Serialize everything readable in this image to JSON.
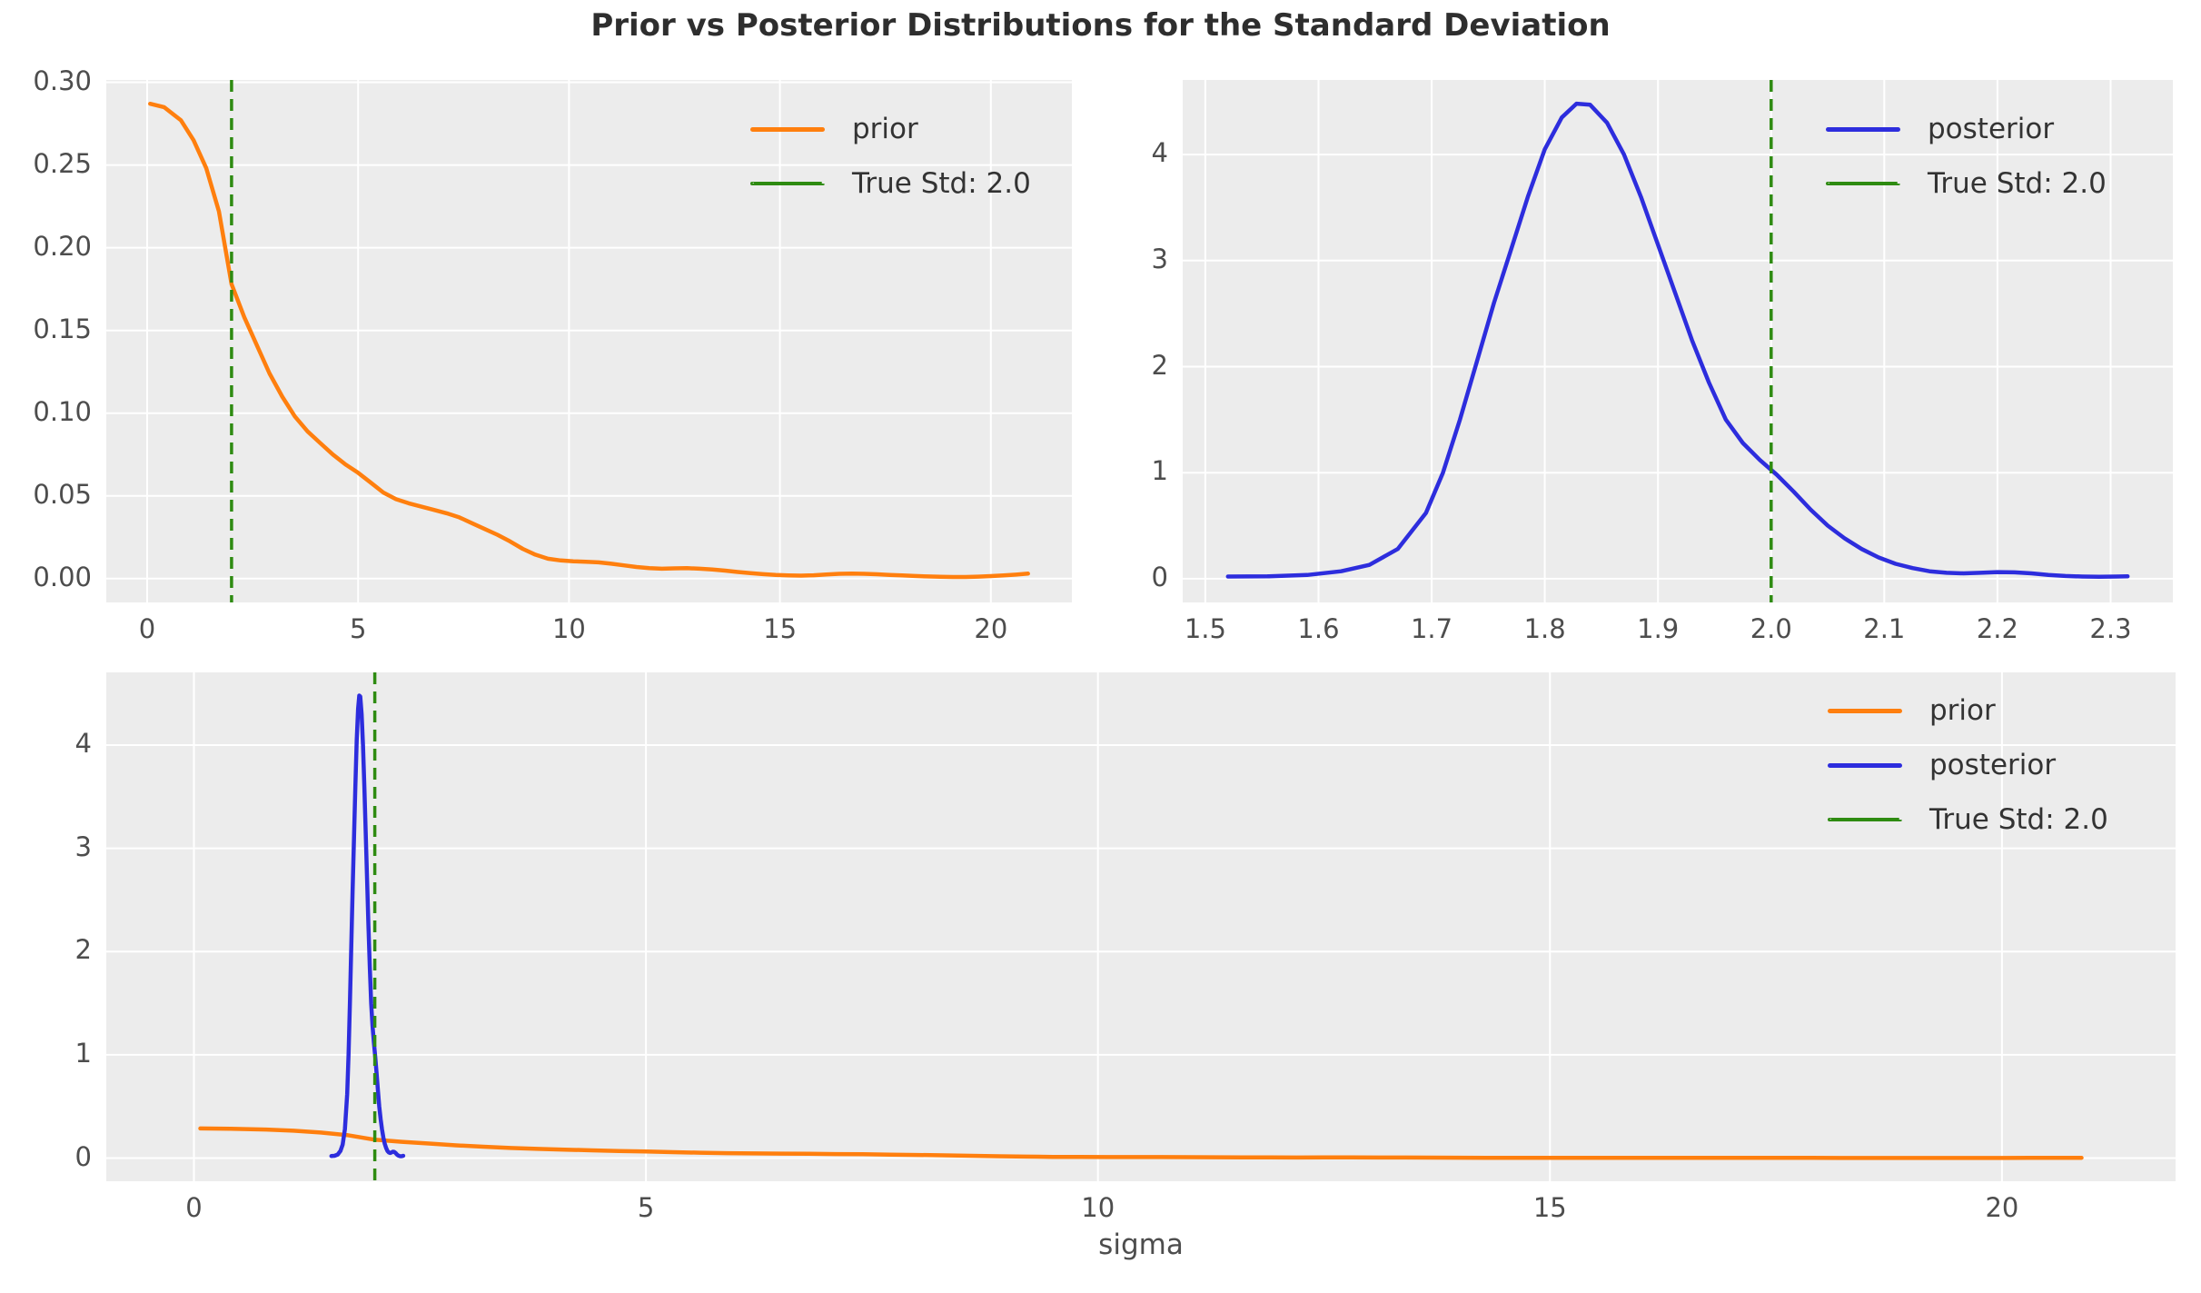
{
  "title": "Prior vs Posterior Distributions for the Standard Deviation",
  "colors": {
    "prior": "#ff7f0e",
    "posterior": "#2d2ddd",
    "true_std": "#2e8b11",
    "plot_bg": "#ececec",
    "grid": "#ffffff",
    "tick_text": "#4d4d4d",
    "title_text": "#2e2e2e"
  },
  "series_points": {
    "prior": [
      [
        0.07,
        0.287
      ],
      [
        0.4,
        0.285
      ],
      [
        0.8,
        0.277
      ],
      [
        1.1,
        0.265
      ],
      [
        1.4,
        0.248
      ],
      [
        1.7,
        0.222
      ],
      [
        2.0,
        0.178
      ],
      [
        2.3,
        0.158
      ],
      [
        2.6,
        0.141
      ],
      [
        2.9,
        0.124
      ],
      [
        3.2,
        0.11
      ],
      [
        3.5,
        0.098
      ],
      [
        3.8,
        0.089
      ],
      [
        4.1,
        0.082
      ],
      [
        4.4,
        0.075
      ],
      [
        4.7,
        0.069
      ],
      [
        5.0,
        0.064
      ],
      [
        5.3,
        0.058
      ],
      [
        5.6,
        0.052
      ],
      [
        5.9,
        0.048
      ],
      [
        6.2,
        0.0455
      ],
      [
        6.5,
        0.0435
      ],
      [
        6.8,
        0.0415
      ],
      [
        7.1,
        0.0395
      ],
      [
        7.4,
        0.037
      ],
      [
        7.7,
        0.0335
      ],
      [
        8.0,
        0.03
      ],
      [
        8.3,
        0.0265
      ],
      [
        8.6,
        0.0225
      ],
      [
        8.9,
        0.018
      ],
      [
        9.2,
        0.0145
      ],
      [
        9.5,
        0.012
      ],
      [
        9.8,
        0.011
      ],
      [
        10.1,
        0.0105
      ],
      [
        10.4,
        0.0102
      ],
      [
        10.7,
        0.0098
      ],
      [
        11.0,
        0.009
      ],
      [
        11.3,
        0.008
      ],
      [
        11.6,
        0.007
      ],
      [
        11.9,
        0.0063
      ],
      [
        12.2,
        0.006
      ],
      [
        12.5,
        0.0062
      ],
      [
        12.8,
        0.0063
      ],
      [
        13.1,
        0.006
      ],
      [
        13.4,
        0.0055
      ],
      [
        13.7,
        0.0048
      ],
      [
        14.0,
        0.004
      ],
      [
        14.3,
        0.0033
      ],
      [
        14.6,
        0.0027
      ],
      [
        14.9,
        0.0022
      ],
      [
        15.2,
        0.0019
      ],
      [
        15.5,
        0.0018
      ],
      [
        15.8,
        0.002
      ],
      [
        16.1,
        0.0025
      ],
      [
        16.4,
        0.0029
      ],
      [
        16.7,
        0.003
      ],
      [
        17.0,
        0.0029
      ],
      [
        17.3,
        0.0026
      ],
      [
        17.6,
        0.0022
      ],
      [
        17.9,
        0.0019
      ],
      [
        18.2,
        0.0016
      ],
      [
        18.5,
        0.0013
      ],
      [
        18.8,
        0.0011
      ],
      [
        19.1,
        0.001
      ],
      [
        19.4,
        0.001
      ],
      [
        19.7,
        0.0012
      ],
      [
        20.0,
        0.0015
      ],
      [
        20.3,
        0.0019
      ],
      [
        20.6,
        0.0024
      ],
      [
        20.88,
        0.003
      ]
    ],
    "posterior": [
      [
        1.52,
        0.02
      ],
      [
        1.555,
        0.022
      ],
      [
        1.59,
        0.035
      ],
      [
        1.62,
        0.07
      ],
      [
        1.645,
        0.13
      ],
      [
        1.67,
        0.28
      ],
      [
        1.695,
        0.62
      ],
      [
        1.71,
        1.0
      ],
      [
        1.725,
        1.5
      ],
      [
        1.74,
        2.05
      ],
      [
        1.755,
        2.6
      ],
      [
        1.77,
        3.1
      ],
      [
        1.785,
        3.6
      ],
      [
        1.8,
        4.05
      ],
      [
        1.815,
        4.35
      ],
      [
        1.828,
        4.48
      ],
      [
        1.84,
        4.47
      ],
      [
        1.855,
        4.3
      ],
      [
        1.87,
        4.0
      ],
      [
        1.885,
        3.6
      ],
      [
        1.9,
        3.15
      ],
      [
        1.915,
        2.7
      ],
      [
        1.93,
        2.25
      ],
      [
        1.945,
        1.85
      ],
      [
        1.96,
        1.5
      ],
      [
        1.975,
        1.28
      ],
      [
        1.99,
        1.12
      ],
      [
        2.005,
        0.98
      ],
      [
        2.02,
        0.82
      ],
      [
        2.035,
        0.65
      ],
      [
        2.05,
        0.5
      ],
      [
        2.065,
        0.38
      ],
      [
        2.08,
        0.28
      ],
      [
        2.095,
        0.2
      ],
      [
        2.11,
        0.14
      ],
      [
        2.125,
        0.1
      ],
      [
        2.14,
        0.07
      ],
      [
        2.155,
        0.055
      ],
      [
        2.17,
        0.05
      ],
      [
        2.185,
        0.055
      ],
      [
        2.2,
        0.062
      ],
      [
        2.215,
        0.06
      ],
      [
        2.23,
        0.05
      ],
      [
        2.245,
        0.035
      ],
      [
        2.26,
        0.025
      ],
      [
        2.275,
        0.02
      ],
      [
        2.29,
        0.018
      ],
      [
        2.305,
        0.02
      ],
      [
        2.315,
        0.022
      ]
    ]
  },
  "chart_data": [
    {
      "id": "top-left",
      "type": "line",
      "xlabel": "",
      "ylabel": "",
      "xlim": [
        -0.97,
        21.92
      ],
      "ylim": [
        -0.0144,
        0.3014
      ],
      "grid": true,
      "legend_position": "upper right",
      "xticks": [
        {
          "v": 0,
          "label": "0"
        },
        {
          "v": 5,
          "label": "5"
        },
        {
          "v": 10,
          "label": "10"
        },
        {
          "v": 15,
          "label": "15"
        },
        {
          "v": 20,
          "label": "20"
        }
      ],
      "yticks": [
        {
          "v": 0.0,
          "label": "0.00"
        },
        {
          "v": 0.05,
          "label": "0.05"
        },
        {
          "v": 0.1,
          "label": "0.10"
        },
        {
          "v": 0.15,
          "label": "0.15"
        },
        {
          "v": 0.2,
          "label": "0.20"
        },
        {
          "v": 0.25,
          "label": "0.25"
        },
        {
          "v": 0.3,
          "label": "0.30"
        }
      ],
      "series": [
        {
          "name": "prior",
          "points": "prior",
          "color": "prior",
          "dash": false
        }
      ],
      "vline": {
        "x": 2.0,
        "label": "True Std: 2.0",
        "color": "true_std"
      },
      "legend": [
        {
          "label": "prior",
          "color": "prior",
          "dash": false
        },
        {
          "label": "True Std: 2.0",
          "color": "true_std",
          "dash": true
        }
      ]
    },
    {
      "id": "top-right",
      "type": "line",
      "xlabel": "",
      "ylabel": "",
      "xlim": [
        1.48,
        2.355
      ],
      "ylim": [
        -0.224,
        4.704
      ],
      "grid": true,
      "legend_position": "upper right",
      "xticks": [
        {
          "v": 1.5,
          "label": "1.5"
        },
        {
          "v": 1.6,
          "label": "1.6"
        },
        {
          "v": 1.7,
          "label": "1.7"
        },
        {
          "v": 1.8,
          "label": "1.8"
        },
        {
          "v": 1.9,
          "label": "1.9"
        },
        {
          "v": 2.0,
          "label": "2.0"
        },
        {
          "v": 2.1,
          "label": "2.1"
        },
        {
          "v": 2.2,
          "label": "2.2"
        },
        {
          "v": 2.3,
          "label": "2.3"
        }
      ],
      "yticks": [
        {
          "v": 0,
          "label": "0"
        },
        {
          "v": 1,
          "label": "1"
        },
        {
          "v": 2,
          "label": "2"
        },
        {
          "v": 3,
          "label": "3"
        },
        {
          "v": 4,
          "label": "4"
        }
      ],
      "series": [
        {
          "name": "posterior",
          "points": "posterior",
          "color": "posterior",
          "dash": false
        }
      ],
      "vline": {
        "x": 2.0,
        "label": "True Std: 2.0",
        "color": "true_std"
      },
      "legend": [
        {
          "label": "posterior",
          "color": "posterior",
          "dash": false
        },
        {
          "label": "True Std: 2.0",
          "color": "true_std",
          "dash": true
        }
      ]
    },
    {
      "id": "bottom",
      "type": "line",
      "xlabel": "sigma",
      "ylabel": "",
      "xlim": [
        -0.97,
        21.92
      ],
      "ylim": [
        -0.224,
        4.704
      ],
      "grid": true,
      "legend_position": "upper right",
      "xticks": [
        {
          "v": 0,
          "label": "0"
        },
        {
          "v": 5,
          "label": "5"
        },
        {
          "v": 10,
          "label": "10"
        },
        {
          "v": 15,
          "label": "15"
        },
        {
          "v": 20,
          "label": "20"
        }
      ],
      "yticks": [
        {
          "v": 0,
          "label": "0"
        },
        {
          "v": 1,
          "label": "1"
        },
        {
          "v": 2,
          "label": "2"
        },
        {
          "v": 3,
          "label": "3"
        },
        {
          "v": 4,
          "label": "4"
        }
      ],
      "series": [
        {
          "name": "prior",
          "points": "prior",
          "color": "prior",
          "dash": false
        },
        {
          "name": "posterior",
          "points": "posterior",
          "color": "posterior",
          "dash": false
        }
      ],
      "vline": {
        "x": 2.0,
        "label": "True Std: 2.0",
        "color": "true_std"
      },
      "legend": [
        {
          "label": "prior",
          "color": "prior",
          "dash": false
        },
        {
          "label": "posterior",
          "color": "posterior",
          "dash": false
        },
        {
          "label": "True Std: 2.0",
          "color": "true_std",
          "dash": true
        }
      ]
    }
  ]
}
